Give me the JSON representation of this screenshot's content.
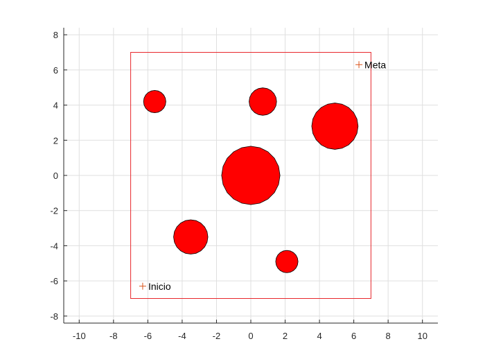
{
  "chart_data": {
    "type": "scatter",
    "title": "",
    "xlabel": "",
    "ylabel": "",
    "xlim": [
      -10.9,
      10.9
    ],
    "ylim": [
      -8.4,
      8.4
    ],
    "grid": true,
    "x_ticks": [
      -10,
      -8,
      -6,
      -4,
      -2,
      0,
      2,
      4,
      6,
      8,
      10
    ],
    "y_ticks": [
      -8,
      -6,
      -4,
      -2,
      0,
      2,
      4,
      6,
      8
    ],
    "boundary": {
      "x": [
        -7,
        7
      ],
      "y": [
        -7,
        7
      ],
      "color": "#e8262b"
    },
    "obstacles": [
      {
        "x": 0,
        "y": 0,
        "r": 1.7
      },
      {
        "x": -5.6,
        "y": 4.2,
        "r": 0.65
      },
      {
        "x": 0.7,
        "y": 4.2,
        "r": 0.8
      },
      {
        "x": 4.9,
        "y": 2.8,
        "r": 1.35
      },
      {
        "x": -3.5,
        "y": -3.5,
        "r": 1.0
      },
      {
        "x": 2.1,
        "y": -4.9,
        "r": 0.65
      }
    ],
    "obstacle_color": "#ff0000",
    "markers": [
      {
        "x": -6.3,
        "y": -6.3,
        "label": "Inicio"
      },
      {
        "x": 6.3,
        "y": 6.3,
        "label": "Meta"
      }
    ],
    "marker_color": "#d95319"
  }
}
